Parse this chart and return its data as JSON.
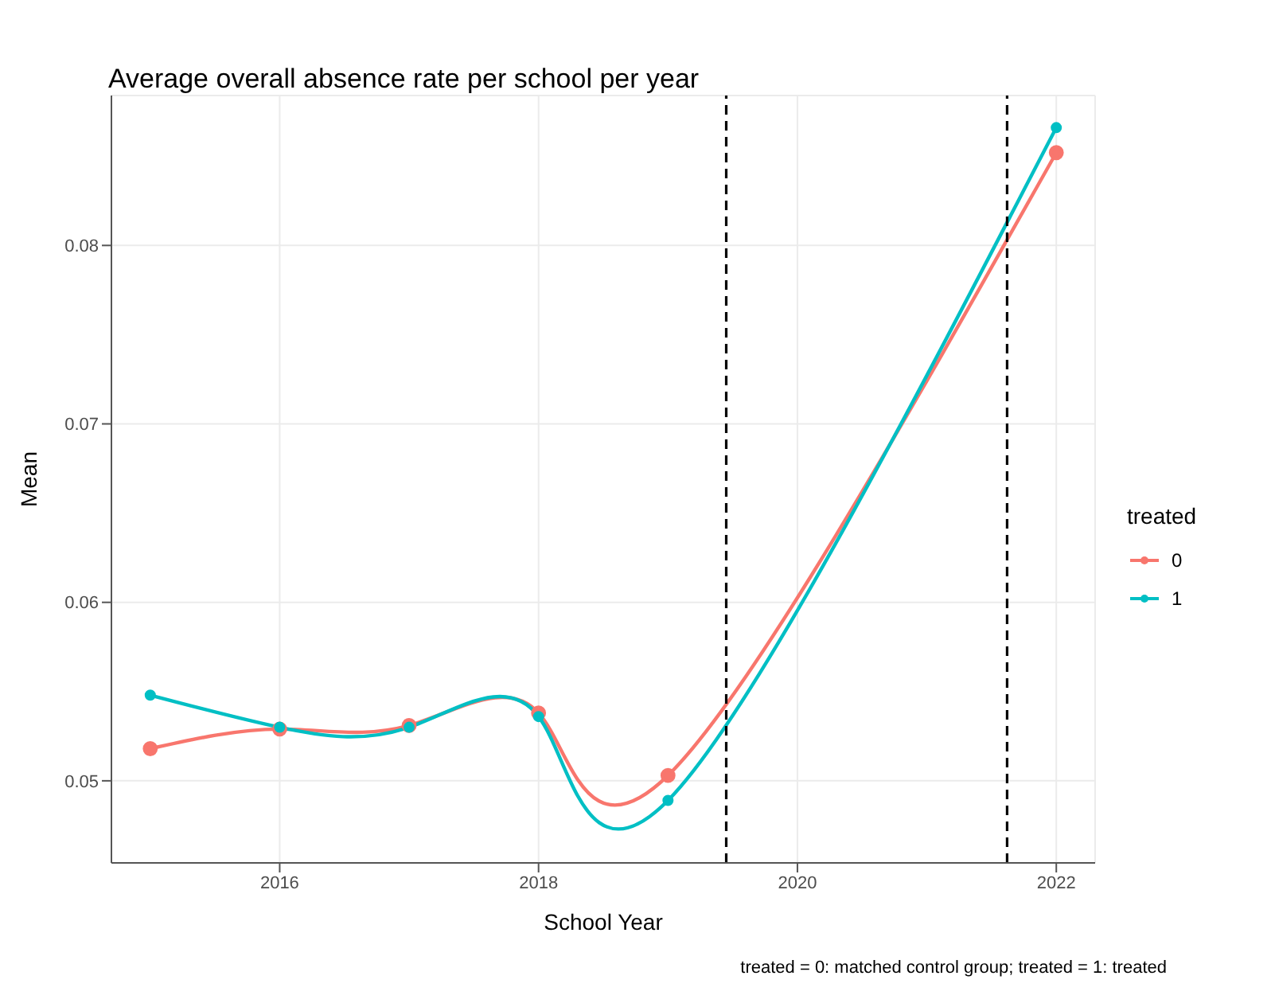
{
  "chart_data": {
    "type": "line",
    "title": "Average overall absence rate per school per year",
    "xlabel": "School Year",
    "ylabel": "Mean",
    "legend_title": "treated",
    "x": [
      2015,
      2016,
      2017,
      2018,
      2019,
      2022
    ],
    "series": [
      {
        "name": "0",
        "color": "#f8766d",
        "values": [
          0.0518,
          0.0529,
          0.0531,
          0.0538,
          0.0503,
          0.0852
        ]
      },
      {
        "name": "1",
        "color": "#00bfc4",
        "values": [
          0.0548,
          0.053,
          0.053,
          0.0536,
          0.0489,
          0.0866
        ]
      }
    ],
    "xlim": [
      2014.7,
      2022.3
    ],
    "xticks": [
      2016,
      2018,
      2020,
      2022
    ],
    "ylim": [
      0.0454,
      0.0884
    ],
    "yticks": [
      0.05,
      0.06,
      0.07,
      0.08
    ],
    "ref_lines": [
      {
        "axis": "x",
        "value": 2019.45,
        "color": "#000000",
        "line_style": "dashed"
      },
      {
        "axis": "x",
        "value": 2021.62,
        "color": "#000000",
        "line_style": "dashed"
      }
    ],
    "annotations": [
      "treated = 0: matched control group; treated = 1: treated"
    ],
    "grid": true,
    "legend": "right",
    "marker": "circle",
    "line_style": "solid"
  }
}
